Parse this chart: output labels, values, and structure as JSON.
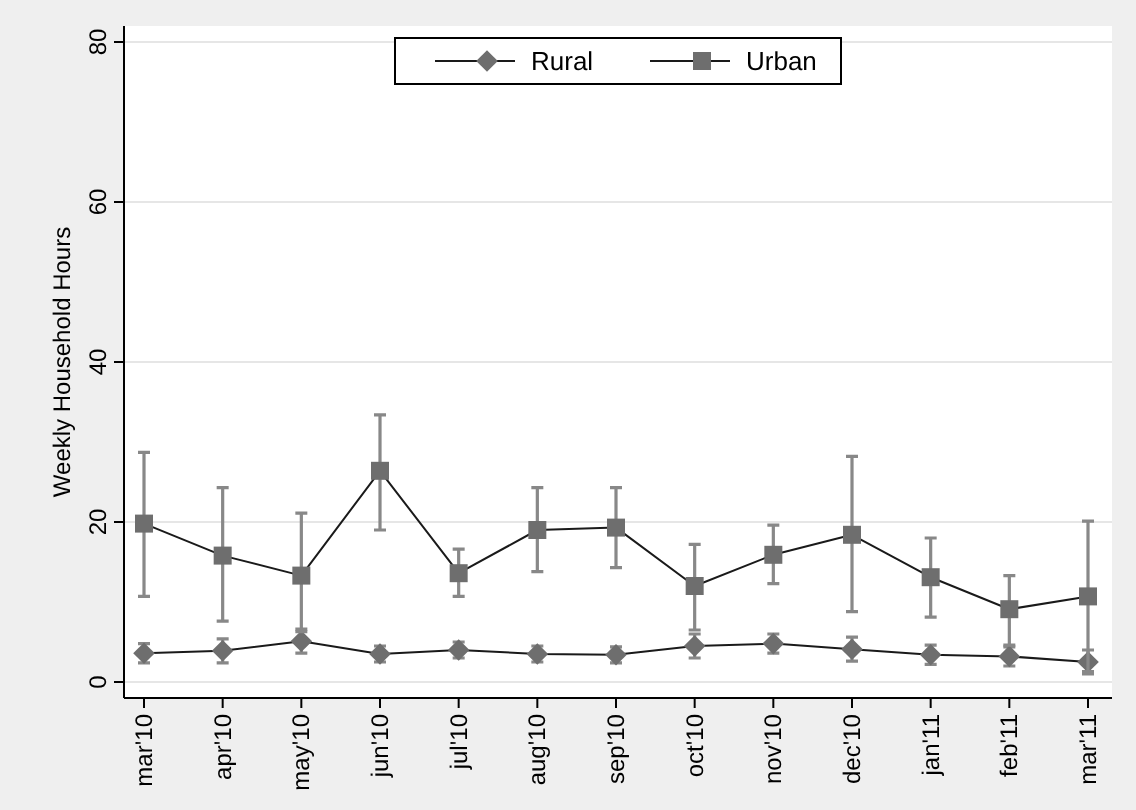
{
  "chart_data": {
    "type": "line",
    "ylabel": "Weekly Household Hours",
    "categories": [
      "mar'10",
      "apr'10",
      "may'10",
      "jun'10",
      "jul'10",
      "aug'10",
      "sep'10",
      "oct'10",
      "nov'10",
      "dec'10",
      "jan'11",
      "feb'11",
      "mar'11"
    ],
    "series": [
      {
        "name": "Rural",
        "color": "#6e6e6e",
        "marker": "diamond",
        "values": [
          3.6,
          3.9,
          5.1,
          3.5,
          4.0,
          3.5,
          3.4,
          4.5,
          4.8,
          4.1,
          3.4,
          3.2,
          2.5
        ],
        "errors": [
          1.2,
          1.5,
          1.5,
          1.0,
          1.0,
          1.0,
          1.0,
          1.5,
          1.2,
          1.5,
          1.2,
          1.2,
          1.5
        ]
      },
      {
        "name": "Urban",
        "color": "#6e6e6e",
        "marker": "square",
        "values": [
          19.8,
          15.8,
          13.3,
          26.4,
          13.6,
          19.0,
          19.3,
          12.0,
          15.9,
          18.4,
          13.1,
          9.1,
          10.7
        ],
        "errors": [
          [
            10.7,
            28.7
          ],
          [
            7.6,
            24.3
          ],
          [
            6.3,
            21.1
          ],
          [
            19.0,
            33.4
          ],
          [
            10.7,
            16.6
          ],
          [
            13.8,
            24.3
          ],
          [
            14.3,
            24.3
          ],
          [
            6.5,
            17.2
          ],
          [
            12.3,
            19.6
          ],
          [
            8.8,
            28.2
          ],
          [
            8.1,
            18.0
          ],
          [
            4.6,
            13.3
          ],
          [
            1.3,
            20.1
          ]
        ]
      }
    ],
    "ylim": [
      -2,
      82
    ],
    "yticks": [
      0,
      20,
      40,
      60,
      80
    ],
    "grid": "y",
    "legend": "top"
  }
}
